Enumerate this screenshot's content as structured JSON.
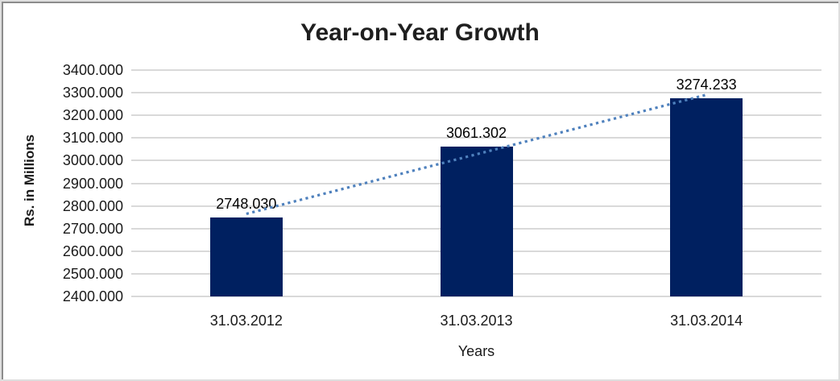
{
  "chart_data": {
    "type": "bar",
    "title": "Year-on-Year Growth",
    "xlabel": "Years",
    "ylabel": "Rs. in Millions",
    "categories": [
      "31.03.2012",
      "31.03.2013",
      "31.03.2014"
    ],
    "values": [
      2748.03,
      3061.302,
      3274.233
    ],
    "data_labels": [
      "2748.030",
      "3061.302",
      "3274.233"
    ],
    "y_ticks": [
      "3400.000",
      "3300.000",
      "3200.000",
      "3100.000",
      "3000.000",
      "2900.000",
      "2800.000",
      "2700.000",
      "2600.000",
      "2500.000",
      "2400.000"
    ],
    "ylim": [
      2400,
      3400
    ],
    "grid": true,
    "legend": "none",
    "bar_color": "#002060",
    "gridline_color": "#D9D9D9",
    "text_color": "#1A1A1A",
    "trendline": {
      "type": "linear",
      "style": "dotted",
      "color": "#4F81BD"
    }
  }
}
